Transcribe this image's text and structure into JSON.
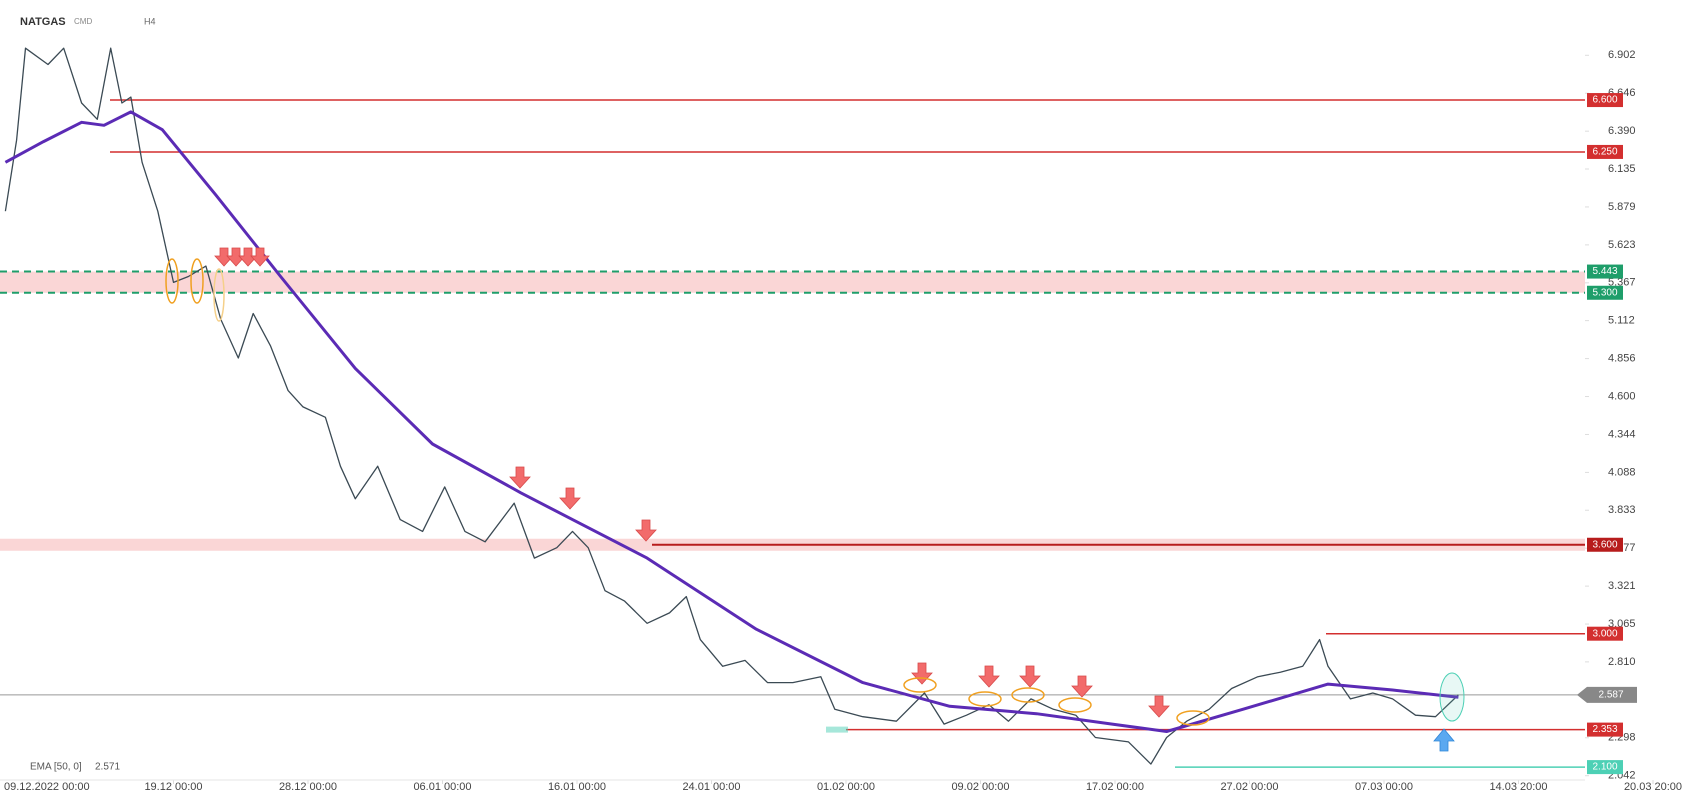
{
  "chart_data": {
    "type": "line",
    "symbol": "NATGAS",
    "market": "CMD",
    "interval": "H4",
    "indicator_label": "EMA [50, 0]",
    "indicator_value": 2.571,
    "ylim": [
      2.013,
      7.275
    ],
    "yticks": [
      6.902,
      6.646,
      {
        "value": 6.39,
        "label": "6.390"
      },
      6.135,
      5.879,
      5.623,
      5.367,
      5.112,
      4.856,
      {
        "value": 4.6,
        "label": "4.600"
      },
      4.344,
      4.088,
      3.833,
      3.577,
      3.321,
      3.065,
      {
        "value": 2.81,
        "label": "2.810"
      },
      2.298,
      2.042
    ],
    "xticks": [
      {
        "value": "09.12 00:00",
        "label": "09.12.2022 00:00"
      },
      "19.12 00:00",
      "28.12 00:00",
      "06.01 00:00",
      "16.01 00:00",
      "24.01 00:00",
      "01.02 00:00",
      "09.02 00:00",
      "17.02 00:00",
      "27.02 00:00",
      "07.03 00:00",
      "14.03 20:00",
      "20.03 20:00"
    ],
    "series": [
      {
        "name": "NATGAS",
        "color": "#3b4a54",
        "x": [
          "06.12 12:00",
          "07.12 08:00",
          "08.12 00:00",
          "09.12 16:00",
          "10.12 20:00",
          "12.12 04:00",
          "13.12 08:00",
          "14.12 08:00",
          "15.12 04:00",
          "15.12 20:00",
          "16.12 16:00",
          "17.12 20:00",
          "19.12 00:00",
          "20.12 00:00",
          "21.12 04:00",
          "22.12 04:00",
          "23.12 08:00",
          "24.12 08:00",
          "25.12 12:00",
          "26.12 16:00",
          "27.12 16:00",
          "29.12 04:00",
          "30.12 04:00",
          "31.12 04:00",
          "01.01 16:00",
          "03.01 04:00",
          "04.01 16:00",
          "06.01 04:00",
          "07.01 16:00",
          "09.01 04:00",
          "11.01 08:00",
          "12.01 20:00",
          "14.01 12:00",
          "15.01 16:00",
          "16.01 16:00",
          "17.01 16:00",
          "18.01 20:00",
          "20.01 04:00",
          "21.01 12:00",
          "22.01 12:00",
          "23.01 08:00",
          "24.01 16:00",
          "26.01 00:00",
          "27.01 08:00",
          "28.01 20:00",
          "30.01 12:00",
          "31.01 08:00",
          "02.02 00:00",
          "04.02 00:00",
          "05.02 16:00",
          "06.02 20:00",
          "08.02 04:00",
          "09.02 12:00",
          "10.02 16:00",
          "12.02 00:00",
          "13.02 08:00",
          "14.02 16:00",
          "15.02 20:00",
          "18.02 00:00",
          "19.02 16:00",
          "20.02 20:00",
          "22.02 08:00",
          "24.02 00:00",
          "25.02 16:00",
          "27.02 12:00",
          "28.02 20:00",
          "02.03 04:00",
          "03.03 04:00",
          "03.03 16:00",
          "05.03 00:00",
          "06.03 08:00",
          "07.03 12:00",
          "08.03 20:00",
          "10.03 00:00",
          "11.03 08:00"
        ],
        "values": [
          5.85,
          6.33,
          6.95,
          6.84,
          6.95,
          6.58,
          6.47,
          6.95,
          6.58,
          6.62,
          6.18,
          5.85,
          5.37,
          5.41,
          5.48,
          5.12,
          4.86,
          5.16,
          4.94,
          4.64,
          4.53,
          4.46,
          4.13,
          3.91,
          4.13,
          3.77,
          3.69,
          3.99,
          3.69,
          3.62,
          3.88,
          3.51,
          3.58,
          3.69,
          3.58,
          3.29,
          3.22,
          3.07,
          3.14,
          3.25,
          2.96,
          2.78,
          2.82,
          2.67,
          2.67,
          2.71,
          2.49,
          2.44,
          2.41,
          2.6,
          2.39,
          2.45,
          2.52,
          2.41,
          2.56,
          2.49,
          2.45,
          2.3,
          2.27,
          2.12,
          2.3,
          2.41,
          2.49,
          2.63,
          2.71,
          2.74,
          2.78,
          2.96,
          2.78,
          2.56,
          2.6,
          2.56,
          2.45,
          2.44,
          2.587
        ]
      },
      {
        "name": "EMA",
        "color": "#5b2bb5",
        "x": [
          "06.12 12:00",
          "09.12 08:00",
          "12.12 04:00",
          "13.12 20:00",
          "15.12 20:00",
          "18.12 04:00",
          "21.12 20:00",
          "26.12 04:00",
          "31.12 04:00",
          "05.01 08:00",
          "11.01 20:00",
          "15.01 16:00",
          "20.01 04:00",
          "26.01 16:00",
          "02.02 00:00",
          "07.02 04:00",
          "12.02 08:00",
          "16.02 20:00",
          "20.02 20:00",
          "26.02 12:00",
          "03.03 16:00",
          "07.03 12:00",
          "11.03 08:00"
        ],
        "values": [
          6.18,
          6.32,
          6.45,
          6.43,
          6.52,
          6.4,
          5.96,
          5.41,
          4.79,
          4.28,
          3.95,
          3.77,
          3.51,
          3.03,
          2.67,
          2.51,
          2.46,
          2.39,
          2.34,
          2.49,
          2.66,
          2.62,
          2.571
        ]
      }
    ],
    "levels": [
      {
        "value": 6.6,
        "label": "6.600",
        "color": "#d32f2f"
      },
      {
        "value": 6.25,
        "label": "6.250",
        "color": "#d32f2f"
      },
      {
        "value": 5.443,
        "label": "5.443",
        "color": "#1e9e6a"
      },
      {
        "value": 5.3,
        "label": "5.300",
        "color": "#1e9e6a"
      },
      {
        "value": 3.6,
        "label": "3.600",
        "color": "#b71c1c"
      },
      {
        "value": 3.0,
        "label": "3.000",
        "color": "#d32f2f"
      },
      {
        "value": 2.353,
        "label": "2.353",
        "color": "#d32f2f"
      },
      {
        "value": 2.1,
        "label": "2.100",
        "color": "#4dd0b5"
      }
    ],
    "last_price": {
      "value": 2.587,
      "label": "2.587",
      "color": "#888888"
    }
  }
}
